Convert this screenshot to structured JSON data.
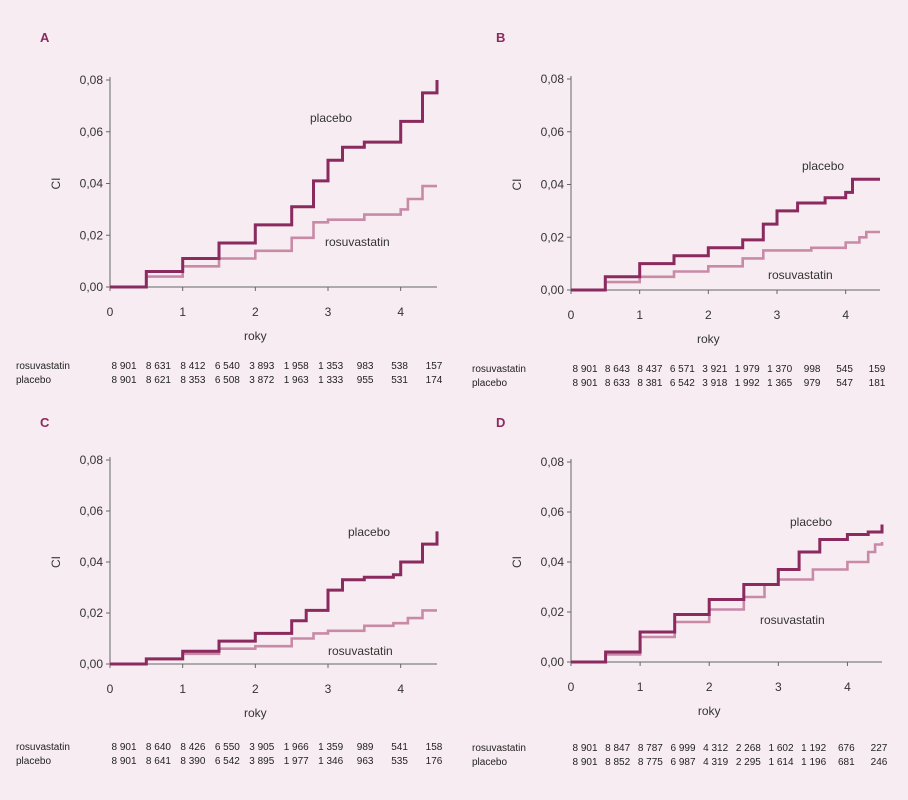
{
  "colors": {
    "placebo": "#8a2a5e",
    "rosuvastatin": "#c98aa8",
    "axis": "#666666",
    "background": "#f7ecf1"
  },
  "chart_data": [
    {
      "panel": "A",
      "type": "line",
      "ylabel": "CI",
      "xlabel": "roky",
      "xlim": [
        0,
        4.5
      ],
      "ylim": [
        0,
        0.08
      ],
      "x_ticks": [
        "0",
        "1",
        "2",
        "3",
        "4"
      ],
      "y_ticks": [
        "0,00",
        "0,02",
        "0,04",
        "0,06",
        "0,08"
      ],
      "series": [
        {
          "name": "placebo",
          "points": [
            [
              0,
              0
            ],
            [
              0.5,
              0.006
            ],
            [
              1,
              0.011
            ],
            [
              1.5,
              0.017
            ],
            [
              2,
              0.024
            ],
            [
              2.5,
              0.031
            ],
            [
              2.8,
              0.041
            ],
            [
              3,
              0.049
            ],
            [
              3.2,
              0.054
            ],
            [
              3.5,
              0.056
            ],
            [
              3.8,
              0.056
            ],
            [
              4,
              0.064
            ],
            [
              4.3,
              0.075
            ],
            [
              4.5,
              0.08
            ]
          ]
        },
        {
          "name": "rosuvastatin",
          "points": [
            [
              0,
              0
            ],
            [
              0.5,
              0.004
            ],
            [
              1,
              0.008
            ],
            [
              1.5,
              0.011
            ],
            [
              2,
              0.014
            ],
            [
              2.5,
              0.019
            ],
            [
              2.8,
              0.025
            ],
            [
              3,
              0.026
            ],
            [
              3.5,
              0.028
            ],
            [
              4,
              0.03
            ],
            [
              4.1,
              0.034
            ],
            [
              4.3,
              0.039
            ],
            [
              4.5,
              0.039
            ]
          ]
        }
      ],
      "risk_table": {
        "rows": [
          {
            "name": "rosuvastatin",
            "values": [
              "8 901",
              "8 631",
              "8 412",
              "6 540",
              "3 893",
              "1 958",
              "1 353",
              "983",
              "538",
              "157"
            ]
          },
          {
            "name": "placebo",
            "values": [
              "8 901",
              "8 621",
              "8 353",
              "6 508",
              "3 872",
              "1 963",
              "1 333",
              "955",
              "531",
              "174"
            ]
          }
        ]
      }
    },
    {
      "panel": "B",
      "type": "line",
      "ylabel": "CI",
      "xlabel": "roky",
      "xlim": [
        0,
        4.5
      ],
      "ylim": [
        0,
        0.08
      ],
      "x_ticks": [
        "0",
        "1",
        "2",
        "3",
        "4"
      ],
      "y_ticks": [
        "0,00",
        "0,02",
        "0,04",
        "0,06",
        "0,08"
      ],
      "series": [
        {
          "name": "placebo",
          "points": [
            [
              0,
              0
            ],
            [
              0.5,
              0.005
            ],
            [
              1,
              0.01
            ],
            [
              1.5,
              0.013
            ],
            [
              2,
              0.016
            ],
            [
              2.5,
              0.019
            ],
            [
              2.8,
              0.025
            ],
            [
              3,
              0.03
            ],
            [
              3.3,
              0.033
            ],
            [
              3.7,
              0.035
            ],
            [
              4,
              0.037
            ],
            [
              4.1,
              0.042
            ],
            [
              4.5,
              0.042
            ]
          ]
        },
        {
          "name": "rosuvastatin",
          "points": [
            [
              0,
              0
            ],
            [
              0.5,
              0.003
            ],
            [
              1,
              0.005
            ],
            [
              1.5,
              0.007
            ],
            [
              2,
              0.009
            ],
            [
              2.5,
              0.012
            ],
            [
              2.8,
              0.015
            ],
            [
              3.5,
              0.016
            ],
            [
              4,
              0.018
            ],
            [
              4.2,
              0.02
            ],
            [
              4.3,
              0.022
            ],
            [
              4.5,
              0.022
            ]
          ]
        }
      ],
      "risk_table": {
        "rows": [
          {
            "name": "rosuvastatin",
            "values": [
              "8 901",
              "8 643",
              "8 437",
              "6 571",
              "3 921",
              "1 979",
              "1 370",
              "998",
              "545",
              "159"
            ]
          },
          {
            "name": "placebo",
            "values": [
              "8 901",
              "8 633",
              "8 381",
              "6 542",
              "3 918",
              "1 992",
              "1 365",
              "979",
              "547",
              "181"
            ]
          }
        ]
      }
    },
    {
      "panel": "C",
      "type": "line",
      "ylabel": "CI",
      "xlabel": "roky",
      "xlim": [
        0,
        4.5
      ],
      "ylim": [
        0,
        0.08
      ],
      "x_ticks": [
        "0",
        "1",
        "2",
        "3",
        "4"
      ],
      "y_ticks": [
        "0,00",
        "0,02",
        "0,04",
        "0,06",
        "0,08"
      ],
      "series": [
        {
          "name": "placebo",
          "points": [
            [
              0,
              0
            ],
            [
              0.5,
              0.002
            ],
            [
              1,
              0.005
            ],
            [
              1.5,
              0.009
            ],
            [
              2,
              0.012
            ],
            [
              2.5,
              0.017
            ],
            [
              2.7,
              0.021
            ],
            [
              3,
              0.029
            ],
            [
              3.2,
              0.033
            ],
            [
              3.5,
              0.034
            ],
            [
              3.9,
              0.035
            ],
            [
              4,
              0.04
            ],
            [
              4.3,
              0.047
            ],
            [
              4.5,
              0.052
            ]
          ]
        },
        {
          "name": "rosuvastatin",
          "points": [
            [
              0,
              0
            ],
            [
              0.5,
              0.002
            ],
            [
              1,
              0.004
            ],
            [
              1.5,
              0.006
            ],
            [
              2,
              0.007
            ],
            [
              2.5,
              0.01
            ],
            [
              2.8,
              0.012
            ],
            [
              3,
              0.013
            ],
            [
              3.5,
              0.015
            ],
            [
              3.9,
              0.016
            ],
            [
              4.1,
              0.018
            ],
            [
              4.3,
              0.021
            ],
            [
              4.5,
              0.021
            ]
          ]
        }
      ],
      "risk_table": {
        "rows": [
          {
            "name": "rosuvastatin",
            "values": [
              "8 901",
              "8 640",
              "8 426",
              "6 550",
              "3 905",
              "1 966",
              "1 359",
              "989",
              "541",
              "158"
            ]
          },
          {
            "name": "placebo",
            "values": [
              "8 901",
              "8 641",
              "8 390",
              "6 542",
              "3 895",
              "1 977",
              "1 346",
              "963",
              "535",
              "176"
            ]
          }
        ]
      }
    },
    {
      "panel": "D",
      "type": "line",
      "ylabel": "CI",
      "xlabel": "roky",
      "xlim": [
        0,
        4.5
      ],
      "ylim": [
        0,
        0.08
      ],
      "x_ticks": [
        "0",
        "1",
        "2",
        "3",
        "4"
      ],
      "y_ticks": [
        "0,00",
        "0,02",
        "0,04",
        "0,06",
        "0,08"
      ],
      "series": [
        {
          "name": "placebo",
          "points": [
            [
              0,
              0
            ],
            [
              0.5,
              0.004
            ],
            [
              1,
              0.012
            ],
            [
              1.5,
              0.019
            ],
            [
              2,
              0.025
            ],
            [
              2.5,
              0.031
            ],
            [
              3,
              0.037
            ],
            [
              3.3,
              0.044
            ],
            [
              3.6,
              0.049
            ],
            [
              4,
              0.051
            ],
            [
              4.3,
              0.052
            ],
            [
              4.5,
              0.055
            ]
          ]
        },
        {
          "name": "rosuvastatin",
          "points": [
            [
              0,
              0
            ],
            [
              0.5,
              0.003
            ],
            [
              1,
              0.01
            ],
            [
              1.5,
              0.016
            ],
            [
              2,
              0.021
            ],
            [
              2.5,
              0.026
            ],
            [
              2.8,
              0.031
            ],
            [
              3,
              0.033
            ],
            [
              3.5,
              0.037
            ],
            [
              4,
              0.04
            ],
            [
              4.3,
              0.044
            ],
            [
              4.4,
              0.047
            ],
            [
              4.5,
              0.048
            ]
          ]
        }
      ],
      "risk_table": {
        "rows": [
          {
            "name": "rosuvastatin",
            "values": [
              "8 901",
              "8 847",
              "8 787",
              "6 999",
              "4 312",
              "2 268",
              "1 602",
              "1 192",
              "676",
              "227"
            ]
          },
          {
            "name": "placebo",
            "values": [
              "8 901",
              "8 852",
              "8 775",
              "6 987",
              "4 319",
              "2 295",
              "1 614",
              "1 196",
              "681",
              "246"
            ]
          }
        ]
      }
    }
  ]
}
